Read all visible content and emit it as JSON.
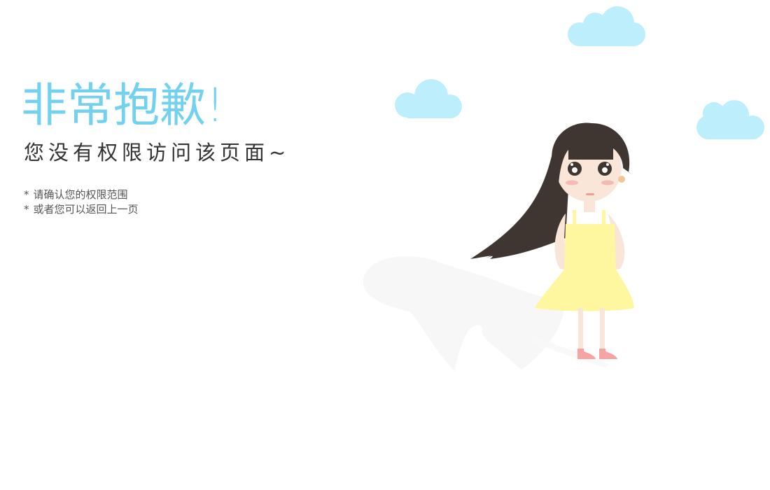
{
  "error": {
    "title": "非常抱歉!",
    "subtitle": "您没有权限访问该页面~",
    "tips": [
      {
        "bullet": "*",
        "text": "请确认您的权限范围"
      },
      {
        "bullet": "*",
        "text": "或者您可以返回上一页"
      }
    ]
  },
  "colors": {
    "title": "#72d1ef",
    "cloud": "#bdeefc",
    "hair": "#3f3531",
    "dress": "#fff6a0",
    "skin": "#f9e6d8",
    "shoes": "#f7a3a0",
    "shadow": "#f7f7f7"
  },
  "illustration": {
    "icon": "crying-girl-illustration"
  }
}
